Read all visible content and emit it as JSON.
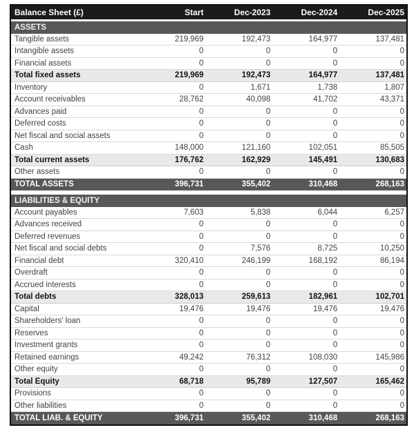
{
  "chart_data": {
    "type": "table",
    "title": "Balance Sheet (£)",
    "columns": [
      "Start",
      "Dec-2023",
      "Dec-2024",
      "Dec-2025"
    ],
    "sections": [
      {
        "header": "ASSETS",
        "rows": [
          {
            "label": "Tangible assets",
            "style": "normal",
            "values": [
              "219,969",
              "192,473",
              "164,977",
              "137,481"
            ]
          },
          {
            "label": "Intangible assets",
            "style": "normal",
            "values": [
              "0",
              "0",
              "0",
              "0"
            ]
          },
          {
            "label": "Financial assets",
            "style": "normal",
            "values": [
              "0",
              "0",
              "0",
              "0"
            ]
          },
          {
            "label": "Total fixed assets",
            "style": "subtotal",
            "values": [
              "219,969",
              "192,473",
              "164,977",
              "137,481"
            ]
          },
          {
            "label": "Inventory",
            "style": "normal",
            "values": [
              "0",
              "1,671",
              "1,738",
              "1,807"
            ]
          },
          {
            "label": "Account receivables",
            "style": "normal",
            "values": [
              "28,762",
              "40,098",
              "41,702",
              "43,371"
            ]
          },
          {
            "label": "Advances paid",
            "style": "normal",
            "values": [
              "0",
              "0",
              "0",
              "0"
            ]
          },
          {
            "label": "Deferred costs",
            "style": "normal",
            "values": [
              "0",
              "0",
              "0",
              "0"
            ]
          },
          {
            "label": "Net fiscal and social assets",
            "style": "normal",
            "values": [
              "0",
              "0",
              "0",
              "0"
            ]
          },
          {
            "label": "Cash",
            "style": "normal",
            "values": [
              "148,000",
              "121,160",
              "102,051",
              "85,505"
            ]
          },
          {
            "label": "Total current assets",
            "style": "subtotal",
            "values": [
              "176,762",
              "162,929",
              "145,491",
              "130,683"
            ]
          },
          {
            "label": "Other assets",
            "style": "normal",
            "values": [
              "0",
              "0",
              "0",
              "0"
            ]
          },
          {
            "label": "TOTAL ASSETS",
            "style": "grand",
            "values": [
              "396,731",
              "355,402",
              "310,468",
              "268,163"
            ]
          }
        ]
      },
      {
        "header": "LIABILITIES & EQUITY",
        "rows": [
          {
            "label": "Account payables",
            "style": "normal",
            "values": [
              "7,603",
              "5,838",
              "6,044",
              "6,257"
            ]
          },
          {
            "label": "Advances received",
            "style": "normal",
            "values": [
              "0",
              "0",
              "0",
              "0"
            ]
          },
          {
            "label": "Deferred revenues",
            "style": "normal",
            "values": [
              "0",
              "0",
              "0",
              "0"
            ]
          },
          {
            "label": "Net fiscal and social debts",
            "style": "normal",
            "values": [
              "0",
              "7,576",
              "8,725",
              "10,250"
            ]
          },
          {
            "label": "Financial debt",
            "style": "normal",
            "values": [
              "320,410",
              "246,199",
              "168,192",
              "86,194"
            ]
          },
          {
            "label": "Overdraft",
            "style": "normal",
            "values": [
              "0",
              "0",
              "0",
              "0"
            ]
          },
          {
            "label": "Accrued interests",
            "style": "normal",
            "values": [
              "0",
              "0",
              "0",
              "0"
            ]
          },
          {
            "label": "Total debts",
            "style": "subtotal",
            "values": [
              "328,013",
              "259,613",
              "182,961",
              "102,701"
            ]
          },
          {
            "label": "Capital",
            "style": "normal",
            "values": [
              "19,476",
              "19,476",
              "19,476",
              "19,476"
            ]
          },
          {
            "label": "Shareholders' loan",
            "style": "normal",
            "values": [
              "0",
              "0",
              "0",
              "0"
            ]
          },
          {
            "label": "Reserves",
            "style": "normal",
            "values": [
              "0",
              "0",
              "0",
              "0"
            ]
          },
          {
            "label": "Investment grants",
            "style": "normal",
            "values": [
              "0",
              "0",
              "0",
              "0"
            ]
          },
          {
            "label": "Retained earnings",
            "style": "normal",
            "values": [
              "49,242",
              "76,312",
              "108,030",
              "145,986"
            ]
          },
          {
            "label": "Other equity",
            "style": "normal",
            "values": [
              "0",
              "0",
              "0",
              "0"
            ]
          },
          {
            "label": "Total Equity",
            "style": "subtotal",
            "values": [
              "68,718",
              "95,789",
              "127,507",
              "165,462"
            ]
          },
          {
            "label": "Provisions",
            "style": "normal",
            "values": [
              "0",
              "0",
              "0",
              "0"
            ]
          },
          {
            "label": "Other liabilities",
            "style": "normal",
            "values": [
              "0",
              "0",
              "0",
              "0"
            ]
          },
          {
            "label": "TOTAL LIAB. & EQUITY",
            "style": "grand",
            "values": [
              "396,731",
              "355,402",
              "310,468",
              "268,163"
            ]
          }
        ]
      }
    ],
    "colors": {
      "header_bg": "#1b1b1a",
      "section_bg": "#58585a",
      "subtotal_bg": "#e9e9e9",
      "row_border": "#d9d9d9",
      "text": "#424242"
    }
  }
}
